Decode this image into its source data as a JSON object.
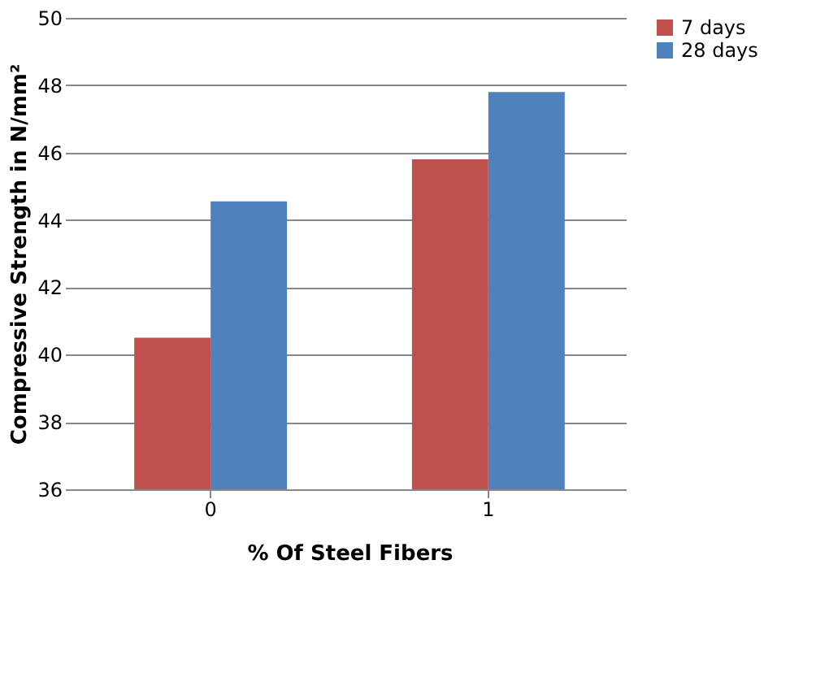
{
  "chart_data": {
    "type": "bar",
    "xlabel": "% Of Steel Fibers",
    "ylabel": "Compressive Strength in N/mm²",
    "categories": [
      "0",
      "1"
    ],
    "series": [
      {
        "name": "7 days",
        "color": "#c0504d",
        "values": [
          40.5,
          45.8
        ]
      },
      {
        "name": "28 days",
        "color": "#4f81bd",
        "values": [
          44.55,
          47.8
        ]
      }
    ],
    "ylim": [
      36,
      50
    ],
    "yticks": [
      36,
      38,
      40,
      42,
      44,
      46,
      48,
      50
    ],
    "grid": "y",
    "legend": "right"
  }
}
